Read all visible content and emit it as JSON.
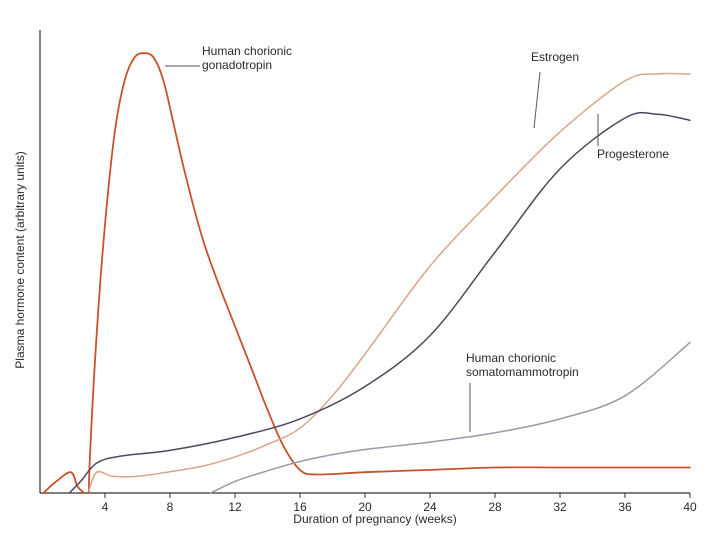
{
  "chart_data": {
    "type": "line",
    "title": "",
    "xlabel": "Duration of pregnancy (weeks)",
    "ylabel": "Plasma hormone content (arbitrary units)",
    "xlim": [
      0,
      40
    ],
    "ylim": [
      0,
      100
    ],
    "xticks": [
      4,
      8,
      12,
      16,
      20,
      24,
      28,
      32,
      36,
      40
    ],
    "grid": false,
    "legend": "none",
    "series": [
      {
        "key": "hcg",
        "name": "Human chorionic gonadotropin",
        "color": "#c8522e",
        "points": [
          [
            3.0,
            0
          ],
          [
            3.1,
            10
          ],
          [
            3.5,
            35
          ],
          [
            4.0,
            58
          ],
          [
            4.6,
            78
          ],
          [
            5.2,
            89
          ],
          [
            5.8,
            94
          ],
          [
            6.4,
            95
          ],
          [
            7.0,
            94
          ],
          [
            7.6,
            89
          ],
          [
            8.2,
            80
          ],
          [
            9.0,
            68
          ],
          [
            10.0,
            55
          ],
          [
            11.0,
            45
          ],
          [
            12.0,
            36
          ],
          [
            13.0,
            27
          ],
          [
            14.0,
            18
          ],
          [
            15.0,
            10
          ],
          [
            16.0,
            5
          ],
          [
            17.0,
            4
          ],
          [
            20,
            4.5
          ],
          [
            24,
            5
          ],
          [
            28,
            5.5
          ],
          [
            32,
            5.5
          ],
          [
            36,
            5.5
          ],
          [
            40,
            5.5
          ]
        ]
      },
      {
        "key": "hcg_tail",
        "name": "",
        "color": "#c8522e",
        "points": [
          [
            0.2,
            0
          ],
          [
            1.0,
            2.5
          ],
          [
            1.9,
            4.5
          ],
          [
            2.3,
            1.5
          ],
          [
            2.7,
            0
          ]
        ]
      },
      {
        "key": "estrogen",
        "name": "Estrogen",
        "color": "#d9a68a",
        "points": [
          [
            3.0,
            0.5
          ],
          [
            3.5,
            4.5
          ],
          [
            4.5,
            3.6
          ],
          [
            6,
            3.6
          ],
          [
            8,
            4.6
          ],
          [
            10,
            5.8
          ],
          [
            12,
            7.8
          ],
          [
            14,
            10.5
          ],
          [
            16,
            14
          ],
          [
            18,
            21
          ],
          [
            20,
            30
          ],
          [
            24,
            49
          ],
          [
            28,
            64
          ],
          [
            32,
            78
          ],
          [
            36,
            89
          ],
          [
            38,
            90.5
          ],
          [
            40,
            90.5
          ]
        ]
      },
      {
        "key": "progesterone",
        "name": "Progesterone",
        "color": "#4a4a5e",
        "points": [
          [
            1.8,
            0
          ],
          [
            2.5,
            2.5
          ],
          [
            3.5,
            6.5
          ],
          [
            5,
            8
          ],
          [
            8,
            9.2
          ],
          [
            12,
            12
          ],
          [
            16,
            16
          ],
          [
            20,
            23
          ],
          [
            24,
            34
          ],
          [
            28,
            52
          ],
          [
            32,
            70
          ],
          [
            36,
            81
          ],
          [
            38,
            81.8
          ],
          [
            40,
            80.5
          ]
        ]
      },
      {
        "key": "hcs",
        "name": "Human chorionic somatomammotropin",
        "color": "#9a9aa8",
        "points": [
          [
            10.5,
            0
          ],
          [
            12,
            2.5
          ],
          [
            14,
            4.8
          ],
          [
            16,
            6.8
          ],
          [
            18,
            8.3
          ],
          [
            20,
            9.4
          ],
          [
            24,
            11
          ],
          [
            28,
            13
          ],
          [
            32,
            16
          ],
          [
            36,
            21
          ],
          [
            40,
            32.5
          ]
        ]
      }
    ],
    "annotations": [
      {
        "series": "hcg",
        "text_lines": [
          "Human chorionic",
          "gonadotropin"
        ]
      },
      {
        "series": "estrogen",
        "text_lines": [
          "Estrogen"
        ]
      },
      {
        "series": "progesterone",
        "text_lines": [
          "Progesterone"
        ]
      },
      {
        "series": "hcs",
        "text_lines": [
          "Human chorionic",
          "somatomammotropin"
        ]
      }
    ]
  }
}
